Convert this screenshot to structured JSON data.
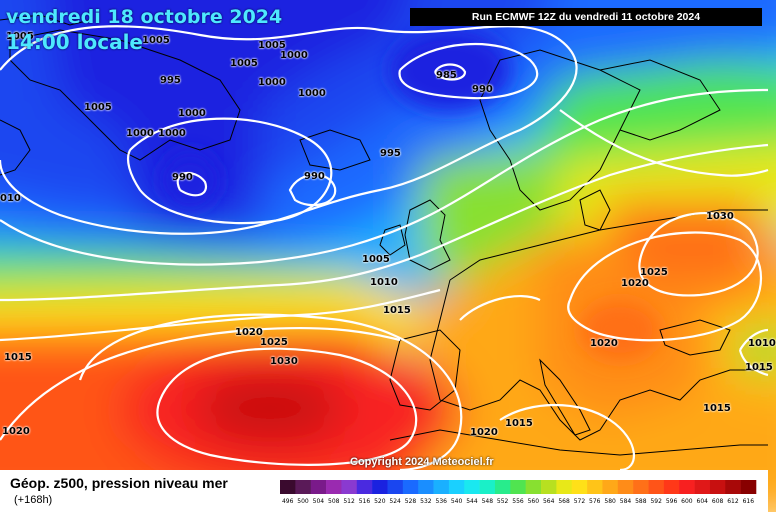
{
  "header": {
    "date": "vendredi 18 octobre 2024",
    "time": "14:00 locale",
    "run": "Run ECMWF 12Z du vendredi 11 octobre 2024"
  },
  "footer": {
    "parameter": "Géop. z500, pression niveau mer",
    "lead": "(+168h)",
    "copyright": "Copyright 2024 Meteociel.fr"
  },
  "legend": {
    "unit_note": "",
    "values": [
      "496",
      "500",
      "504",
      "508",
      "512",
      "516",
      "520",
      "524",
      "528",
      "532",
      "536",
      "540",
      "544",
      "548",
      "552",
      "556",
      "560",
      "564",
      "568",
      "572",
      "576",
      "580",
      "584",
      "588",
      "592",
      "596",
      "600",
      "604",
      "608",
      "612",
      "616"
    ],
    "colors": [
      "#3a0a2e",
      "#5a1a58",
      "#7a1a8a",
      "#9a2ab0",
      "#8a3ad0",
      "#4a2ae0",
      "#1a22e0",
      "#1a46f0",
      "#1a6aff",
      "#1a8eff",
      "#1ab0ff",
      "#1ad0ff",
      "#1ae8f0",
      "#1af0c8",
      "#28ec8c",
      "#50e450",
      "#88e030",
      "#b8e020",
      "#e8e818",
      "#ffe018",
      "#ffc418",
      "#ffa818",
      "#ff8c18",
      "#ff7018",
      "#ff5418",
      "#ff3818",
      "#f82020",
      "#e01818",
      "#c81010",
      "#a80808",
      "#880000"
    ]
  },
  "isobars": [
    {
      "label": "1005",
      "key": "l1"
    },
    {
      "label": "1005",
      "key": "l2"
    },
    {
      "label": "1000",
      "key": "l3"
    },
    {
      "label": "1005",
      "key": "l4"
    },
    {
      "label": "1000",
      "key": "l5"
    },
    {
      "label": "1000",
      "key": "l6"
    },
    {
      "label": "995",
      "key": "l7"
    },
    {
      "label": "1005",
      "key": "l8"
    },
    {
      "label": "1000",
      "key": "l9"
    },
    {
      "label": "1000",
      "key": "l10"
    },
    {
      "label": "1000",
      "key": "l11"
    },
    {
      "label": "985",
      "key": "l12"
    },
    {
      "label": "990",
      "key": "l13"
    },
    {
      "label": "995",
      "key": "l14"
    },
    {
      "label": "990",
      "key": "l15"
    },
    {
      "label": "990",
      "key": "l16"
    },
    {
      "label": "010",
      "key": "l17"
    },
    {
      "label": "1005",
      "key": "l18"
    },
    {
      "label": "1010",
      "key": "l19"
    },
    {
      "label": "1015",
      "key": "l20"
    },
    {
      "label": "1030",
      "key": "l21"
    },
    {
      "label": "1025",
      "key": "l22"
    },
    {
      "label": "1020",
      "key": "l23"
    },
    {
      "label": "1020",
      "key": "l24"
    },
    {
      "label": "1025",
      "key": "l25"
    },
    {
      "label": "1030",
      "key": "l26"
    },
    {
      "label": "1015",
      "key": "l27"
    },
    {
      "label": "1020",
      "key": "l28"
    },
    {
      "label": "1020",
      "key": "l29"
    },
    {
      "label": "1015",
      "key": "l30"
    },
    {
      "label": "1020",
      "key": "l31"
    },
    {
      "label": "1015",
      "key": "l32"
    },
    {
      "label": "1015",
      "key": "l33"
    },
    {
      "label": "1010",
      "key": "l34"
    },
    {
      "label": "1005",
      "key": "l35"
    }
  ]
}
